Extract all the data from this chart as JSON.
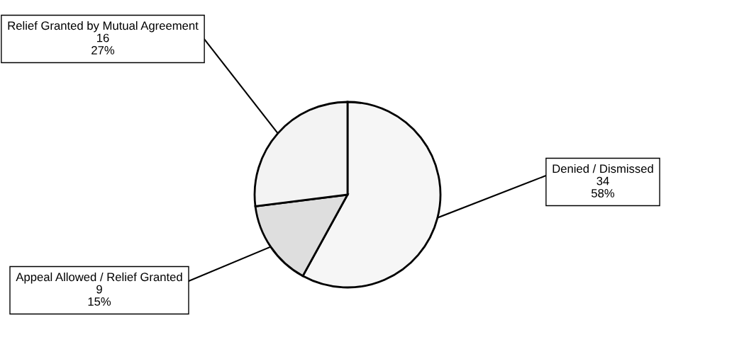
{
  "chart_data": {
    "type": "pie",
    "categories": [
      "Denied / Dismissed",
      "Appeal Allowed / Relief Granted",
      "Relief Granted by Mutual Agreement"
    ],
    "values": [
      58,
      15,
      27
    ],
    "value_labels": [
      "34\n58%",
      "9\n15%",
      "16\n27%"
    ],
    "colors": [
      "#f6f6f6",
      "#dedede",
      "#f3f3f3"
    ]
  }
}
